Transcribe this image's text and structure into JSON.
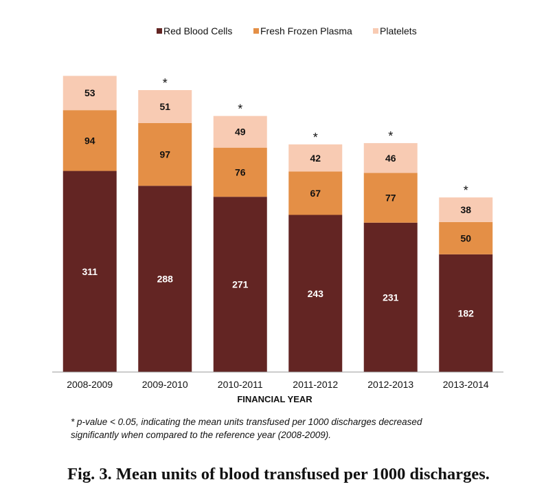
{
  "chart_data": {
    "type": "bar",
    "stacked": true,
    "categories": [
      "2008-2009",
      "2009-2010",
      "2010-2011",
      "2011-2012",
      "2012-2013",
      "2013-2014"
    ],
    "series": [
      {
        "name": "Red Blood Cells",
        "values": [
          311,
          288,
          271,
          243,
          231,
          182
        ],
        "color": "#632523"
      },
      {
        "name": "Fresh Frozen Plasma",
        "values": [
          94,
          97,
          76,
          67,
          77,
          50
        ],
        "color": "#e48f46"
      },
      {
        "name": "Platelets",
        "values": [
          53,
          51,
          49,
          42,
          46,
          38
        ],
        "color": "#f8cbb3"
      }
    ],
    "significance_marker": "*",
    "significant": [
      false,
      true,
      true,
      true,
      true,
      true
    ],
    "xlabel": "FINANCIAL YEAR",
    "ylabel": "",
    "ylim": [
      0,
      486
    ],
    "grid": false,
    "legend_position": "top-center"
  },
  "footnote_line1": "* p-value < 0.05, indicating the mean units transfused per 1000 discharges decreased",
  "footnote_line2": "significantly when compared to the reference year (2008-2009).",
  "caption": "Fig. 3. Mean units of blood transfused per 1000 discharges."
}
